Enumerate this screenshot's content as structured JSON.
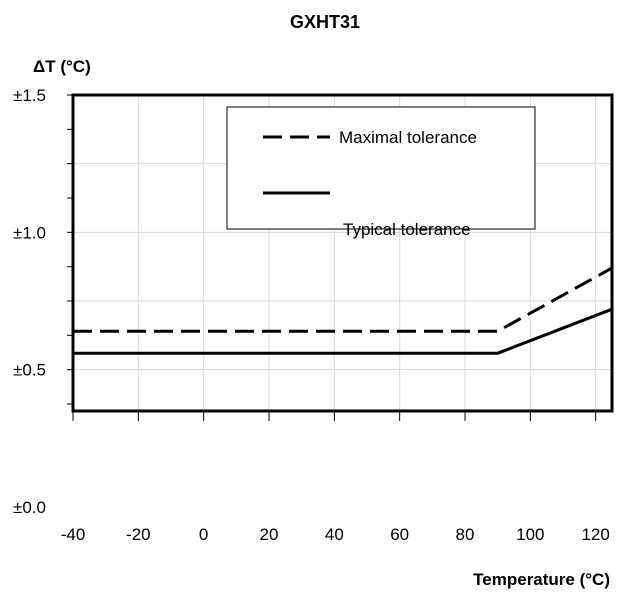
{
  "chart_data": {
    "type": "line",
    "title": "GXHT31",
    "ylabel": "ΔT (°C)",
    "xlabel": "Temperature (°C)",
    "xlim": [
      -40,
      125
    ],
    "ylim": [
      0,
      1.5
    ],
    "x_ticks": [
      -40,
      -20,
      0,
      20,
      40,
      60,
      80,
      100,
      120
    ],
    "x_tick_labels": [
      "-40",
      "-20",
      "0",
      "20",
      "40",
      "60",
      "80",
      "100",
      "120"
    ],
    "y_ticks": [
      0,
      0.5,
      1.0,
      1.5
    ],
    "y_tick_labels": [
      "±0.0",
      "±0.5",
      "±1.0",
      "±1.5"
    ],
    "grid": true,
    "legend_position": "top-right",
    "series": [
      {
        "name": "Maximal tolerance",
        "style": "dashed",
        "color": "#000000",
        "x": [
          -40,
          90,
          125
        ],
        "y": [
          0.64,
          0.64,
          0.87
        ]
      },
      {
        "name": "Typical tolerance",
        "style": "solid",
        "color": "#000000",
        "x": [
          -40,
          90,
          125
        ],
        "y": [
          0.56,
          0.56,
          0.72
        ]
      }
    ]
  }
}
